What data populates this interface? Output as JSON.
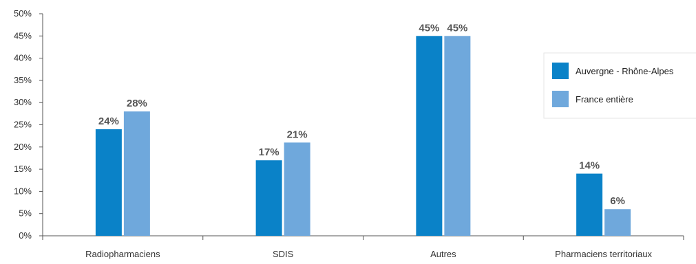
{
  "chart_data": {
    "type": "bar",
    "categories": [
      "Radiopharmaciens",
      "SDIS",
      "Autres",
      "Pharmaciens territoriaux"
    ],
    "series": [
      {
        "name": "Auvergne - Rhône-Alpes",
        "values": [
          24,
          17,
          45,
          14
        ],
        "labels": [
          "24%",
          "17%",
          "45%",
          "14%"
        ],
        "color": "#0a82c8"
      },
      {
        "name": "France entière",
        "values": [
          28,
          21,
          45,
          6
        ],
        "labels": [
          "28%",
          "21%",
          "45%",
          "6%"
        ],
        "color": "#6fa8dc"
      }
    ],
    "ylim": [
      0,
      50
    ],
    "yticks": [
      0,
      5,
      10,
      15,
      20,
      25,
      30,
      35,
      40,
      45,
      50
    ],
    "ytick_labels": [
      "0%",
      "5%",
      "10%",
      "15%",
      "20%",
      "25%",
      "30%",
      "35%",
      "40%",
      "45%",
      "50%"
    ],
    "grid": false,
    "legend_position": "right"
  }
}
